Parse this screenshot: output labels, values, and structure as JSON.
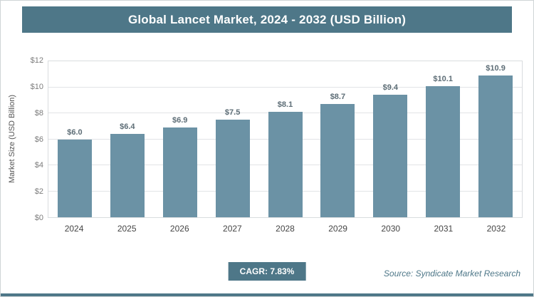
{
  "header": {
    "title": "Global Lancet Market, 2024 - 2032 (USD Billion)"
  },
  "chart_data": {
    "type": "bar",
    "title": "Global Lancet Market, 2024 - 2032 (USD Billion)",
    "categories": [
      "2024",
      "2025",
      "2026",
      "2027",
      "2028",
      "2029",
      "2030",
      "2031",
      "2032"
    ],
    "values": [
      6.0,
      6.4,
      6.9,
      7.5,
      8.1,
      8.7,
      9.4,
      10.1,
      10.9
    ],
    "value_labels": [
      "$6.0",
      "$6.4",
      "$6.9",
      "$7.5",
      "$8.1",
      "$8.7",
      "$9.4",
      "$10.1",
      "$10.9"
    ],
    "xlabel": "",
    "ylabel": "Market Size (USD Billion)",
    "ylim": [
      0,
      12
    ],
    "ytick_labels": [
      "$0",
      "$2",
      "$4",
      "$6",
      "$8",
      "$10",
      "$12"
    ],
    "grid": true,
    "legend": false,
    "bar_color": "#6b92a5"
  },
  "footer": {
    "cagr": "CAGR: 7.83%",
    "source": "Source: Syndicate Market Research"
  },
  "colors": {
    "accent": "#4e7788",
    "bar": "#6b92a5"
  }
}
